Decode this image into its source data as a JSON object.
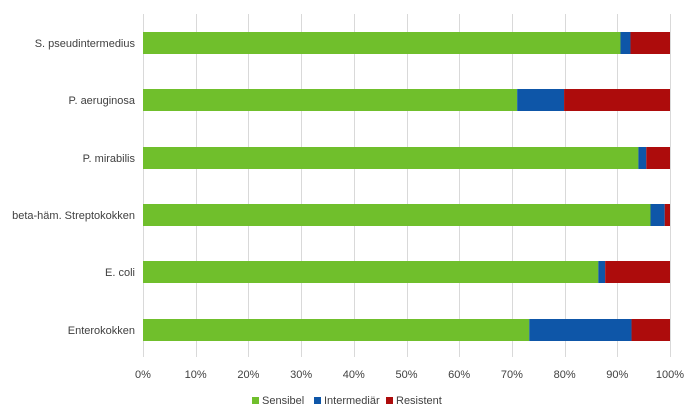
{
  "chart_data": {
    "type": "bar",
    "orientation": "horizontal",
    "stacked": true,
    "categories": [
      "S. pseudintermedius",
      "P. aeruginosa",
      "P. mirabilis",
      "beta-häm. Streptokokken",
      "E. coli",
      "Enterokokken"
    ],
    "series": [
      {
        "name": "Sensibel",
        "color": "#70bf2c",
        "values": [
          90.6,
          71.0,
          94.0,
          96.3,
          86.4,
          73.3
        ]
      },
      {
        "name": "Intermediär",
        "color": "#0e56a8",
        "values": [
          1.9,
          8.9,
          1.5,
          2.7,
          1.3,
          19.4
        ]
      },
      {
        "name": "Resistent",
        "color": "#ad0c0c",
        "values": [
          7.5,
          20.1,
          4.5,
          1.0,
          12.3,
          7.3
        ]
      }
    ],
    "x_ticks": [
      "0%",
      "10%",
      "20%",
      "30%",
      "40%",
      "50%",
      "60%",
      "70%",
      "80%",
      "90%",
      "100%"
    ],
    "xlim": [
      0,
      100
    ],
    "grid": "vertical",
    "legend_position": "bottom"
  }
}
